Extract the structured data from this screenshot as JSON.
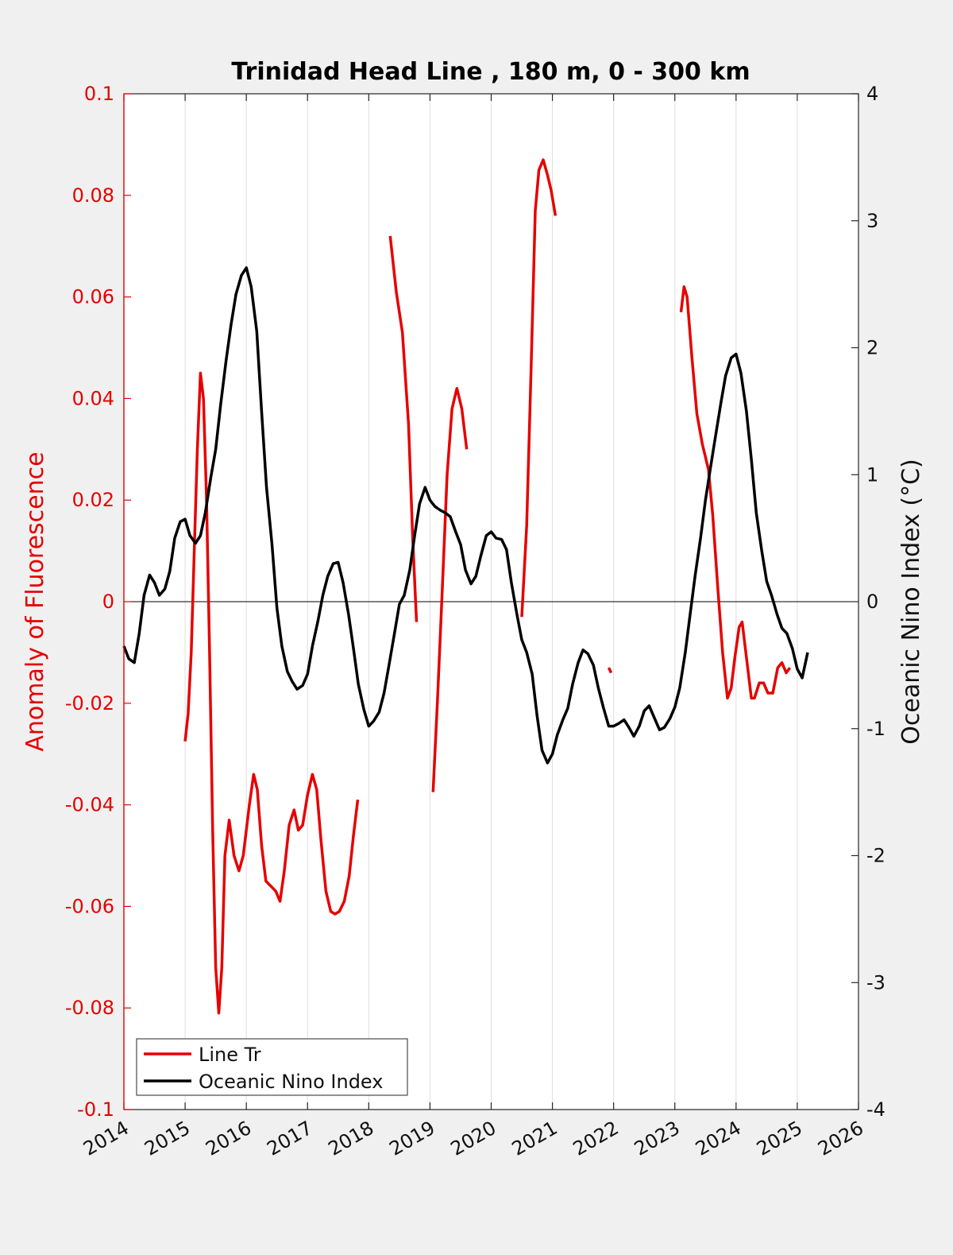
{
  "chart_data": {
    "type": "line",
    "title": "Trinidad Head Line , 180 m, 0 - 300 km",
    "ylabel_left": "Anomaly of Fluorescence",
    "ylabel_right": "Oceanic Nino Index (°C)",
    "xlabel": "",
    "xlim": [
      2014,
      2026
    ],
    "ylim_left": [
      -0.1,
      0.1
    ],
    "ylim_right": [
      -4,
      4
    ],
    "x_ticks": [
      2014,
      2015,
      2016,
      2017,
      2018,
      2019,
      2020,
      2021,
      2022,
      2023,
      2024,
      2025,
      2026
    ],
    "x_tick_labels": [
      "2014",
      "2015",
      "2016",
      "2017",
      "2018",
      "2019",
      "2020",
      "2021",
      "2022",
      "2023",
      "2024",
      "2025",
      "2026"
    ],
    "y_left_ticks": [
      -0.1,
      -0.08,
      -0.06,
      -0.04,
      -0.02,
      0,
      0.02,
      0.04,
      0.06,
      0.08,
      0.1
    ],
    "y_left_tick_labels": [
      "-0.1",
      "-0.08",
      "-0.06",
      "-0.04",
      "-0.02",
      "0",
      "0.02",
      "0.04",
      "0.06",
      "0.08",
      "0.1"
    ],
    "y_right_ticks": [
      -4,
      -3,
      -2,
      -1,
      0,
      1,
      2,
      3,
      4
    ],
    "y_right_tick_labels": [
      "-4",
      "-3",
      "-2",
      "-1",
      "0",
      "1",
      "2",
      "3",
      "4"
    ],
    "grid": "vertical-x",
    "zero_line": true,
    "legend": {
      "placement": "bottom-left",
      "entries": [
        "Line Tr",
        "Oceanic Nino Index"
      ]
    },
    "series": [
      {
        "name": "Line Tr",
        "axis": "left",
        "color": "#e60000",
        "segments": [
          [
            [
              2015.0,
              -0.0275
            ],
            [
              2015.05,
              -0.022
            ],
            [
              2015.1,
              -0.01
            ],
            [
              2015.15,
              0.01
            ],
            [
              2015.2,
              0.03
            ],
            [
              2015.25,
              0.045
            ],
            [
              2015.3,
              0.04
            ],
            [
              2015.35,
              0.02
            ],
            [
              2015.4,
              -0.01
            ],
            [
              2015.45,
              -0.045
            ],
            [
              2015.5,
              -0.072
            ],
            [
              2015.55,
              -0.081
            ],
            [
              2015.6,
              -0.072
            ],
            [
              2015.65,
              -0.05
            ],
            [
              2015.72,
              -0.043
            ],
            [
              2015.8,
              -0.05
            ],
            [
              2015.88,
              -0.053
            ],
            [
              2015.95,
              -0.05
            ],
            [
              2016.05,
              -0.04
            ],
            [
              2016.12,
              -0.034
            ],
            [
              2016.18,
              -0.037
            ],
            [
              2016.25,
              -0.048
            ],
            [
              2016.32,
              -0.055
            ],
            [
              2016.4,
              -0.056
            ],
            [
              2016.48,
              -0.057
            ],
            [
              2016.55,
              -0.059
            ],
            [
              2016.62,
              -0.053
            ],
            [
              2016.7,
              -0.044
            ],
            [
              2016.78,
              -0.041
            ],
            [
              2016.85,
              -0.045
            ],
            [
              2016.92,
              -0.044
            ],
            [
              2017.0,
              -0.038
            ],
            [
              2017.08,
              -0.034
            ],
            [
              2017.15,
              -0.037
            ],
            [
              2017.22,
              -0.047
            ],
            [
              2017.3,
              -0.057
            ],
            [
              2017.38,
              -0.061
            ],
            [
              2017.45,
              -0.0615
            ],
            [
              2017.52,
              -0.061
            ],
            [
              2017.6,
              -0.059
            ],
            [
              2017.68,
              -0.054
            ],
            [
              2017.75,
              -0.046
            ],
            [
              2017.82,
              -0.039
            ]
          ],
          [
            [
              2018.35,
              0.072
            ],
            [
              2018.45,
              0.061
            ],
            [
              2018.55,
              0.053
            ],
            [
              2018.65,
              0.035
            ],
            [
              2018.72,
              0.012
            ],
            [
              2018.78,
              -0.004
            ]
          ],
          [
            [
              2019.05,
              -0.0375
            ],
            [
              2019.12,
              -0.02
            ],
            [
              2019.2,
              0.002
            ],
            [
              2019.28,
              0.025
            ],
            [
              2019.36,
              0.038
            ],
            [
              2019.44,
              0.042
            ],
            [
              2019.52,
              0.038
            ],
            [
              2019.6,
              0.03
            ]
          ],
          [
            [
              2020.5,
              -0.003
            ],
            [
              2020.58,
              0.015
            ],
            [
              2020.65,
              0.045
            ],
            [
              2020.72,
              0.077
            ],
            [
              2020.78,
              0.085
            ],
            [
              2020.85,
              0.087
            ],
            [
              2020.92,
              0.084
            ],
            [
              2020.98,
              0.081
            ],
            [
              2021.05,
              0.076
            ]
          ],
          [
            [
              2021.92,
              -0.013
            ],
            [
              2021.96,
              -0.014
            ]
          ],
          [
            [
              2023.1,
              0.057
            ],
            [
              2023.15,
              0.062
            ],
            [
              2023.2,
              0.06
            ],
            [
              2023.28,
              0.048
            ],
            [
              2023.36,
              0.037
            ],
            [
              2023.45,
              0.031
            ],
            [
              2023.55,
              0.026
            ],
            [
              2023.62,
              0.017
            ],
            [
              2023.7,
              0.003
            ],
            [
              2023.78,
              -0.01
            ],
            [
              2023.86,
              -0.019
            ],
            [
              2023.92,
              -0.017
            ],
            [
              2023.98,
              -0.011
            ],
            [
              2024.05,
              -0.005
            ],
            [
              2024.1,
              -0.004
            ],
            [
              2024.18,
              -0.012
            ],
            [
              2024.25,
              -0.019
            ],
            [
              2024.3,
              -0.019
            ],
            [
              2024.38,
              -0.016
            ],
            [
              2024.45,
              -0.016
            ],
            [
              2024.52,
              -0.018
            ],
            [
              2024.6,
              -0.018
            ],
            [
              2024.68,
              -0.013
            ],
            [
              2024.75,
              -0.012
            ],
            [
              2024.82,
              -0.014
            ],
            [
              2024.88,
              -0.013
            ]
          ]
        ]
      },
      {
        "name": "Oceanic Nino Index",
        "axis": "right",
        "color": "#000000",
        "segments": [
          [
            [
              2014.0,
              -0.35
            ],
            [
              2014.08,
              -0.45
            ],
            [
              2014.17,
              -0.48
            ],
            [
              2014.25,
              -0.25
            ],
            [
              2014.33,
              0.05
            ],
            [
              2014.42,
              0.21
            ],
            [
              2014.5,
              0.15
            ],
            [
              2014.58,
              0.05
            ],
            [
              2014.67,
              0.1
            ],
            [
              2014.75,
              0.24
            ],
            [
              2014.83,
              0.5
            ],
            [
              2014.92,
              0.63
            ],
            [
              2015.0,
              0.65
            ],
            [
              2015.08,
              0.52
            ],
            [
              2015.17,
              0.46
            ],
            [
              2015.25,
              0.52
            ],
            [
              2015.33,
              0.7
            ],
            [
              2015.42,
              0.98
            ],
            [
              2015.5,
              1.2
            ],
            [
              2015.58,
              1.55
            ],
            [
              2015.67,
              1.9
            ],
            [
              2015.75,
              2.18
            ],
            [
              2015.83,
              2.42
            ],
            [
              2015.92,
              2.57
            ],
            [
              2016.0,
              2.63
            ],
            [
              2016.08,
              2.48
            ],
            [
              2016.17,
              2.13
            ],
            [
              2016.25,
              1.5
            ],
            [
              2016.33,
              0.9
            ],
            [
              2016.42,
              0.45
            ],
            [
              2016.5,
              -0.05
            ],
            [
              2016.58,
              -0.35
            ],
            [
              2016.67,
              -0.55
            ],
            [
              2016.75,
              -0.63
            ],
            [
              2016.83,
              -0.69
            ],
            [
              2016.92,
              -0.66
            ],
            [
              2017.0,
              -0.57
            ],
            [
              2017.08,
              -0.35
            ],
            [
              2017.17,
              -0.15
            ],
            [
              2017.25,
              0.05
            ],
            [
              2017.33,
              0.2
            ],
            [
              2017.42,
              0.3
            ],
            [
              2017.5,
              0.31
            ],
            [
              2017.58,
              0.15
            ],
            [
              2017.67,
              -0.1
            ],
            [
              2017.75,
              -0.37
            ],
            [
              2017.83,
              -0.65
            ],
            [
              2017.92,
              -0.85
            ],
            [
              2018.0,
              -0.98
            ],
            [
              2018.08,
              -0.94
            ],
            [
              2018.17,
              -0.87
            ],
            [
              2018.25,
              -0.72
            ],
            [
              2018.33,
              -0.5
            ],
            [
              2018.42,
              -0.25
            ],
            [
              2018.5,
              -0.02
            ],
            [
              2018.58,
              0.05
            ],
            [
              2018.67,
              0.25
            ],
            [
              2018.75,
              0.52
            ],
            [
              2018.83,
              0.77
            ],
            [
              2018.92,
              0.9
            ],
            [
              2019.0,
              0.8
            ],
            [
              2019.08,
              0.75
            ],
            [
              2019.17,
              0.72
            ],
            [
              2019.25,
              0.7
            ],
            [
              2019.33,
              0.67
            ],
            [
              2019.42,
              0.55
            ],
            [
              2019.5,
              0.45
            ],
            [
              2019.58,
              0.25
            ],
            [
              2019.67,
              0.14
            ],
            [
              2019.75,
              0.2
            ],
            [
              2019.83,
              0.36
            ],
            [
              2019.92,
              0.52
            ],
            [
              2020.0,
              0.55
            ],
            [
              2020.08,
              0.5
            ],
            [
              2020.17,
              0.49
            ],
            [
              2020.25,
              0.41
            ],
            [
              2020.33,
              0.15
            ],
            [
              2020.42,
              -0.1
            ],
            [
              2020.5,
              -0.3
            ],
            [
              2020.58,
              -0.4
            ],
            [
              2020.67,
              -0.57
            ],
            [
              2020.75,
              -0.9
            ],
            [
              2020.83,
              -1.17
            ],
            [
              2020.92,
              -1.27
            ],
            [
              2021.0,
              -1.2
            ],
            [
              2021.08,
              -1.05
            ],
            [
              2021.17,
              -0.93
            ],
            [
              2021.25,
              -0.84
            ],
            [
              2021.33,
              -0.65
            ],
            [
              2021.42,
              -0.48
            ],
            [
              2021.5,
              -0.38
            ],
            [
              2021.58,
              -0.41
            ],
            [
              2021.67,
              -0.5
            ],
            [
              2021.75,
              -0.68
            ],
            [
              2021.83,
              -0.83
            ],
            [
              2021.92,
              -0.98
            ],
            [
              2022.0,
              -0.98
            ],
            [
              2022.08,
              -0.96
            ],
            [
              2022.17,
              -0.93
            ],
            [
              2022.25,
              -0.99
            ],
            [
              2022.33,
              -1.06
            ],
            [
              2022.42,
              -0.98
            ],
            [
              2022.5,
              -0.86
            ],
            [
              2022.58,
              -0.82
            ],
            [
              2022.67,
              -0.92
            ],
            [
              2022.75,
              -1.01
            ],
            [
              2022.83,
              -0.99
            ],
            [
              2022.92,
              -0.92
            ],
            [
              2023.0,
              -0.83
            ],
            [
              2023.08,
              -0.68
            ],
            [
              2023.17,
              -0.4
            ],
            [
              2023.25,
              -0.1
            ],
            [
              2023.33,
              0.2
            ],
            [
              2023.42,
              0.5
            ],
            [
              2023.5,
              0.8
            ],
            [
              2023.58,
              1.05
            ],
            [
              2023.67,
              1.32
            ],
            [
              2023.75,
              1.56
            ],
            [
              2023.83,
              1.78
            ],
            [
              2023.92,
              1.92
            ],
            [
              2024.0,
              1.95
            ],
            [
              2024.08,
              1.8
            ],
            [
              2024.17,
              1.5
            ],
            [
              2024.25,
              1.12
            ],
            [
              2024.33,
              0.7
            ],
            [
              2024.42,
              0.4
            ],
            [
              2024.5,
              0.16
            ],
            [
              2024.58,
              0.05
            ],
            [
              2024.67,
              -0.1
            ],
            [
              2024.75,
              -0.21
            ],
            [
              2024.83,
              -0.25
            ],
            [
              2024.92,
              -0.37
            ],
            [
              2025.0,
              -0.53
            ],
            [
              2025.08,
              -0.6
            ],
            [
              2025.17,
              -0.4
            ]
          ]
        ]
      }
    ]
  }
}
